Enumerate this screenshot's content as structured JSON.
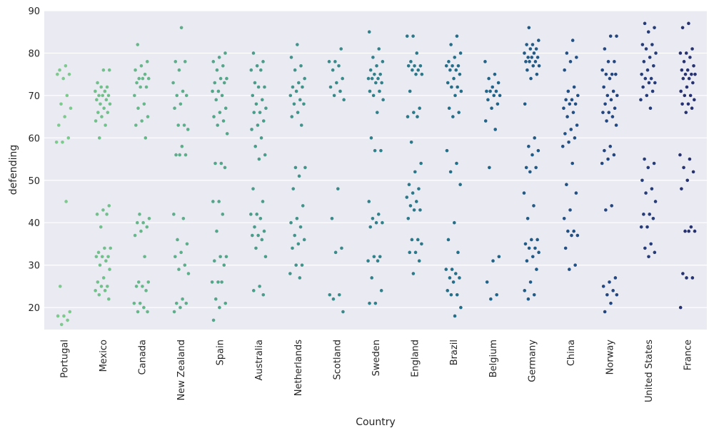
{
  "chart_data": {
    "type": "strip",
    "x_label": "Country",
    "y_label": "defending",
    "categories": [
      "Portugal",
      "Mexico",
      "Canada",
      "New Zealand",
      "Spain",
      "Australia",
      "Netherlands",
      "Scotland",
      "Sweden",
      "England",
      "Brazil",
      "Belgium",
      "Germany",
      "China",
      "Norway",
      "United States",
      "France"
    ],
    "colors": [
      "#7ec98d",
      "#73c08c",
      "#68b78b",
      "#5eae8b",
      "#55a58a",
      "#4b9c8a",
      "#42938a",
      "#3a8a8a",
      "#32818a",
      "#2b7889",
      "#256e88",
      "#226487",
      "#215a85",
      "#225083",
      "#23467f",
      "#253c79",
      "#273271"
    ],
    "values": [
      [
        77,
        76,
        75,
        74,
        75,
        70,
        68,
        67,
        65,
        63,
        60,
        59,
        59,
        45,
        25,
        19,
        18,
        18,
        17,
        16
      ],
      [
        76,
        76,
        73,
        72,
        72,
        71,
        71,
        70,
        70,
        70,
        69,
        69,
        68,
        68,
        67,
        66,
        66,
        65,
        64,
        63,
        60,
        44,
        43,
        42,
        42,
        39,
        34,
        34,
        33,
        32,
        32,
        32,
        31,
        30,
        29,
        27,
        26,
        25,
        25,
        24,
        24,
        23,
        22
      ],
      [
        82,
        78,
        77,
        76,
        75,
        74,
        74,
        74,
        73,
        72,
        72,
        70,
        68,
        67,
        65,
        64,
        63,
        60,
        42,
        41,
        40,
        40,
        39,
        38,
        37,
        32,
        26,
        26,
        25,
        25,
        24,
        21,
        21,
        20,
        19,
        19
      ],
      [
        86,
        78,
        78,
        76,
        73,
        71,
        70,
        70,
        68,
        67,
        63,
        63,
        62,
        58,
        56,
        56,
        56,
        42,
        41,
        36,
        35,
        33,
        32,
        30,
        29,
        28,
        22,
        21,
        21,
        20,
        19
      ],
      [
        80,
        79,
        78,
        77,
        76,
        74,
        74,
        73,
        73,
        71,
        71,
        70,
        69,
        67,
        66,
        65,
        64,
        63,
        61,
        54,
        54,
        53,
        45,
        45,
        42,
        38,
        32,
        32,
        31,
        30,
        26,
        26,
        26,
        22,
        21,
        20,
        17
      ],
      [
        80,
        78,
        77,
        76,
        76,
        73,
        72,
        72,
        70,
        69,
        68,
        67,
        66,
        66,
        64,
        63,
        62,
        60,
        58,
        56,
        55,
        48,
        45,
        42,
        42,
        41,
        39,
        38,
        37,
        37,
        36,
        34,
        32,
        25,
        24,
        23
      ],
      [
        82,
        79,
        77,
        76,
        74,
        73,
        72,
        72,
        71,
        70,
        69,
        68,
        68,
        66,
        65,
        63,
        53,
        53,
        51,
        48,
        44,
        41,
        40,
        39,
        37,
        36,
        35,
        34,
        30,
        30,
        28,
        27
      ],
      [
        81,
        78,
        78,
        77,
        76,
        74,
        73,
        72,
        71,
        70,
        69,
        48,
        41,
        34,
        33,
        23,
        23,
        22,
        19
      ],
      [
        85,
        81,
        79,
        78,
        77,
        76,
        75,
        75,
        74,
        74,
        74,
        73,
        73,
        71,
        71,
        70,
        69,
        66,
        60,
        57,
        57,
        45,
        42,
        41,
        40,
        40,
        39,
        32,
        32,
        31,
        31,
        27,
        24,
        21,
        21
      ],
      [
        84,
        84,
        80,
        78,
        77,
        77,
        77,
        76,
        76,
        75,
        75,
        71,
        67,
        66,
        65,
        65,
        59,
        54,
        52,
        49,
        48,
        47,
        46,
        45,
        44,
        43,
        43,
        41,
        36,
        36,
        35,
        33,
        33,
        31,
        28
      ],
      [
        84,
        82,
        80,
        79,
        78,
        77,
        77,
        77,
        76,
        76,
        75,
        74,
        73,
        72,
        72,
        71,
        70,
        67,
        66,
        65,
        57,
        54,
        52,
        49,
        40,
        36,
        33,
        29,
        29,
        28,
        27,
        27,
        26,
        24,
        23,
        23,
        20,
        18
      ],
      [
        78,
        75,
        74,
        73,
        72,
        71,
        71,
        71,
        70,
        70,
        69,
        68,
        67,
        64,
        62,
        53,
        32,
        31,
        26,
        23,
        22
      ],
      [
        86,
        83,
        82,
        82,
        81,
        81,
        80,
        80,
        79,
        79,
        79,
        78,
        78,
        78,
        77,
        77,
        76,
        75,
        74,
        68,
        60,
        58,
        57,
        56,
        53,
        53,
        52,
        47,
        44,
        41,
        36,
        36,
        35,
        34,
        34,
        33,
        32,
        31,
        29,
        26,
        24,
        23,
        22
      ],
      [
        83,
        80,
        79,
        78,
        76,
        72,
        71,
        70,
        69,
        69,
        68,
        68,
        67,
        66,
        65,
        63,
        62,
        61,
        60,
        59,
        58,
        54,
        49,
        47,
        43,
        41,
        38,
        38,
        37,
        37,
        34,
        30,
        29
      ],
      [
        84,
        84,
        81,
        78,
        78,
        76,
        75,
        75,
        75,
        74,
        72,
        71,
        70,
        70,
        69,
        68,
        67,
        66,
        66,
        65,
        64,
        63,
        58,
        57,
        56,
        55,
        54,
        44,
        43,
        27,
        26,
        25,
        24,
        23,
        23,
        21,
        19
      ],
      [
        87,
        86,
        85,
        82,
        82,
        81,
        80,
        79,
        78,
        77,
        76,
        75,
        74,
        74,
        73,
        73,
        72,
        71,
        70,
        69,
        67,
        55,
        54,
        53,
        50,
        48,
        47,
        45,
        42,
        42,
        41,
        39,
        39,
        35,
        34,
        33,
        32
      ],
      [
        87,
        86,
        81,
        80,
        80,
        79,
        78,
        77,
        76,
        76,
        75,
        75,
        75,
        74,
        74,
        73,
        72,
        71,
        70,
        70,
        69,
        68,
        68,
        67,
        66,
        56,
        55,
        53,
        52,
        50,
        48,
        39,
        38,
        38,
        38,
        28,
        27,
        27,
        20
      ]
    ],
    "ylim": [
      14.8,
      90
    ],
    "yticks": [
      20,
      30,
      40,
      50,
      60,
      70,
      80,
      90
    ],
    "grid": true
  }
}
